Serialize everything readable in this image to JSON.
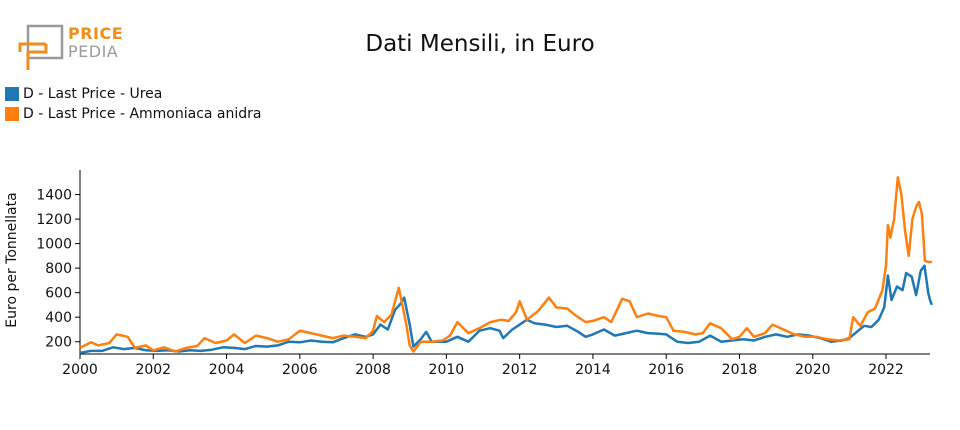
{
  "logo": {
    "line1": "PRICE",
    "line2": "PEDIA"
  },
  "colors": {
    "urea": "#1f77b4",
    "ammonia": "#ff7f0e",
    "logo_orange": "#f28c1a",
    "logo_gray": "#9a9a9a"
  },
  "chart_data": {
    "type": "line",
    "title": "Dati Mensili, in Euro",
    "xlabel": "",
    "ylabel": "Euro per Tonnellata",
    "xlim": [
      2000,
      2023.2
    ],
    "ylim": [
      100,
      1600
    ],
    "xticks": [
      2000,
      2002,
      2004,
      2006,
      2008,
      2010,
      2012,
      2014,
      2016,
      2018,
      2020,
      2022
    ],
    "yticks": [
      200,
      400,
      600,
      800,
      1000,
      1200,
      1400
    ],
    "legend_placement": "top-left",
    "grid": false,
    "series": [
      {
        "name": "D - Last Price - Urea",
        "color": "#1f77b4",
        "points": [
          [
            2000.0,
            110
          ],
          [
            2000.3,
            125
          ],
          [
            2000.6,
            125
          ],
          [
            2000.9,
            155
          ],
          [
            2001.2,
            140
          ],
          [
            2001.5,
            150
          ],
          [
            2001.8,
            130
          ],
          [
            2002.1,
            125
          ],
          [
            2002.4,
            130
          ],
          [
            2002.7,
            120
          ],
          [
            2003.0,
            130
          ],
          [
            2003.3,
            125
          ],
          [
            2003.6,
            135
          ],
          [
            2003.9,
            155
          ],
          [
            2004.2,
            150
          ],
          [
            2004.5,
            140
          ],
          [
            2004.8,
            165
          ],
          [
            2005.1,
            160
          ],
          [
            2005.4,
            170
          ],
          [
            2005.7,
            200
          ],
          [
            2006.0,
            195
          ],
          [
            2006.3,
            210
          ],
          [
            2006.6,
            200
          ],
          [
            2006.9,
            195
          ],
          [
            2007.2,
            230
          ],
          [
            2007.5,
            260
          ],
          [
            2007.8,
            240
          ],
          [
            2008.0,
            260
          ],
          [
            2008.2,
            340
          ],
          [
            2008.4,
            300
          ],
          [
            2008.6,
            460
          ],
          [
            2008.75,
            510
          ],
          [
            2008.85,
            560
          ],
          [
            2009.0,
            340
          ],
          [
            2009.1,
            160
          ],
          [
            2009.3,
            220
          ],
          [
            2009.45,
            280
          ],
          [
            2009.6,
            200
          ],
          [
            2010.0,
            200
          ],
          [
            2010.3,
            240
          ],
          [
            2010.6,
            200
          ],
          [
            2010.9,
            290
          ],
          [
            2011.2,
            310
          ],
          [
            2011.45,
            290
          ],
          [
            2011.55,
            230
          ],
          [
            2011.8,
            300
          ],
          [
            2012.0,
            340
          ],
          [
            2012.2,
            380
          ],
          [
            2012.4,
            350
          ],
          [
            2012.7,
            340
          ],
          [
            2013.0,
            320
          ],
          [
            2013.3,
            330
          ],
          [
            2013.6,
            280
          ],
          [
            2013.8,
            240
          ],
          [
            2014.0,
            260
          ],
          [
            2014.3,
            300
          ],
          [
            2014.6,
            250
          ],
          [
            2014.9,
            270
          ],
          [
            2015.2,
            290
          ],
          [
            2015.5,
            270
          ],
          [
            2015.8,
            265
          ],
          [
            2016.0,
            260
          ],
          [
            2016.3,
            200
          ],
          [
            2016.6,
            190
          ],
          [
            2016.9,
            200
          ],
          [
            2017.2,
            250
          ],
          [
            2017.5,
            200
          ],
          [
            2017.8,
            210
          ],
          [
            2018.1,
            220
          ],
          [
            2018.4,
            210
          ],
          [
            2018.7,
            240
          ],
          [
            2019.0,
            260
          ],
          [
            2019.3,
            240
          ],
          [
            2019.6,
            260
          ],
          [
            2019.9,
            250
          ],
          [
            2020.2,
            230
          ],
          [
            2020.5,
            200
          ],
          [
            2020.8,
            210
          ],
          [
            2021.0,
            230
          ],
          [
            2021.2,
            280
          ],
          [
            2021.4,
            330
          ],
          [
            2021.6,
            320
          ],
          [
            2021.8,
            380
          ],
          [
            2021.95,
            480
          ],
          [
            2022.0,
            600
          ],
          [
            2022.05,
            740
          ],
          [
            2022.15,
            540
          ],
          [
            2022.3,
            650
          ],
          [
            2022.45,
            620
          ],
          [
            2022.55,
            760
          ],
          [
            2022.7,
            730
          ],
          [
            2022.82,
            580
          ],
          [
            2022.95,
            780
          ],
          [
            2023.05,
            820
          ],
          [
            2023.15,
            600
          ],
          [
            2023.2,
            540
          ],
          [
            2023.25,
            500
          ]
        ]
      },
      {
        "name": "D - Last Price - Ammoniaca anidra",
        "color": "#ff7f0e",
        "points": [
          [
            2000.0,
            150
          ],
          [
            2000.3,
            195
          ],
          [
            2000.5,
            170
          ],
          [
            2000.8,
            190
          ],
          [
            2001.0,
            260
          ],
          [
            2001.3,
            240
          ],
          [
            2001.5,
            150
          ],
          [
            2001.8,
            170
          ],
          [
            2002.0,
            130
          ],
          [
            2002.3,
            155
          ],
          [
            2002.6,
            120
          ],
          [
            2002.9,
            150
          ],
          [
            2003.2,
            165
          ],
          [
            2003.4,
            230
          ],
          [
            2003.7,
            190
          ],
          [
            2004.0,
            210
          ],
          [
            2004.2,
            260
          ],
          [
            2004.5,
            190
          ],
          [
            2004.8,
            250
          ],
          [
            2005.1,
            230
          ],
          [
            2005.4,
            200
          ],
          [
            2005.7,
            220
          ],
          [
            2006.0,
            290
          ],
          [
            2006.3,
            270
          ],
          [
            2006.6,
            250
          ],
          [
            2006.9,
            230
          ],
          [
            2007.2,
            250
          ],
          [
            2007.5,
            240
          ],
          [
            2007.8,
            230
          ],
          [
            2008.0,
            290
          ],
          [
            2008.1,
            410
          ],
          [
            2008.3,
            360
          ],
          [
            2008.5,
            420
          ],
          [
            2008.7,
            640
          ],
          [
            2008.9,
            350
          ],
          [
            2009.0,
            170
          ],
          [
            2009.1,
            120
          ],
          [
            2009.3,
            200
          ],
          [
            2009.6,
            200
          ],
          [
            2009.9,
            210
          ],
          [
            2010.1,
            250
          ],
          [
            2010.3,
            360
          ],
          [
            2010.6,
            270
          ],
          [
            2010.9,
            310
          ],
          [
            2011.2,
            360
          ],
          [
            2011.5,
            380
          ],
          [
            2011.7,
            370
          ],
          [
            2011.9,
            440
          ],
          [
            2012.0,
            530
          ],
          [
            2012.2,
            380
          ],
          [
            2012.5,
            450
          ],
          [
            2012.8,
            560
          ],
          [
            2013.0,
            480
          ],
          [
            2013.3,
            470
          ],
          [
            2013.5,
            420
          ],
          [
            2013.8,
            360
          ],
          [
            2014.0,
            370
          ],
          [
            2014.3,
            400
          ],
          [
            2014.5,
            360
          ],
          [
            2014.8,
            550
          ],
          [
            2015.0,
            530
          ],
          [
            2015.2,
            400
          ],
          [
            2015.5,
            430
          ],
          [
            2015.8,
            410
          ],
          [
            2016.0,
            400
          ],
          [
            2016.2,
            290
          ],
          [
            2016.5,
            280
          ],
          [
            2016.8,
            260
          ],
          [
            2017.0,
            270
          ],
          [
            2017.2,
            350
          ],
          [
            2017.5,
            310
          ],
          [
            2017.8,
            220
          ],
          [
            2018.0,
            240
          ],
          [
            2018.2,
            310
          ],
          [
            2018.4,
            240
          ],
          [
            2018.7,
            270
          ],
          [
            2018.9,
            340
          ],
          [
            2019.2,
            300
          ],
          [
            2019.5,
            260
          ],
          [
            2019.8,
            240
          ],
          [
            2020.1,
            240
          ],
          [
            2020.4,
            220
          ],
          [
            2020.7,
            210
          ],
          [
            2021.0,
            220
          ],
          [
            2021.1,
            400
          ],
          [
            2021.3,
            330
          ],
          [
            2021.5,
            440
          ],
          [
            2021.7,
            470
          ],
          [
            2021.9,
            620
          ],
          [
            2022.0,
            820
          ],
          [
            2022.05,
            1150
          ],
          [
            2022.12,
            1050
          ],
          [
            2022.22,
            1200
          ],
          [
            2022.32,
            1540
          ],
          [
            2022.42,
            1400
          ],
          [
            2022.52,
            1100
          ],
          [
            2022.62,
            900
          ],
          [
            2022.72,
            1200
          ],
          [
            2022.82,
            1300
          ],
          [
            2022.9,
            1340
          ],
          [
            2022.98,
            1240
          ],
          [
            2023.06,
            860
          ],
          [
            2023.15,
            850
          ],
          [
            2023.25,
            850
          ]
        ]
      }
    ]
  }
}
